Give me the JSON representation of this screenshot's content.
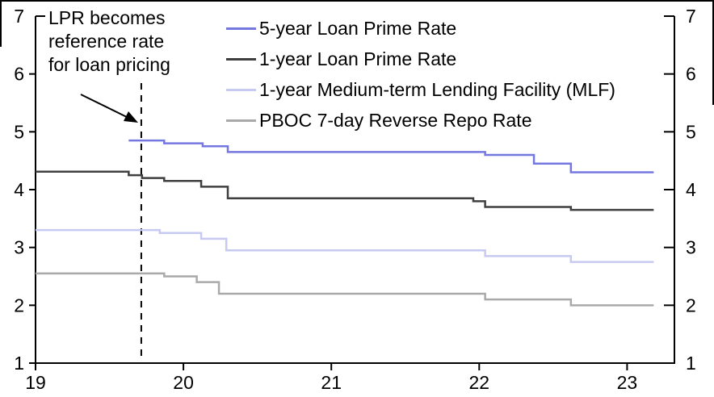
{
  "chart_data": {
    "type": "line",
    "step": true,
    "title": "",
    "xlabel": "",
    "ylabel": "",
    "xlim": [
      19,
      23.32
    ],
    "ylim": [
      1,
      7
    ],
    "x_ticks": [
      19,
      20,
      21,
      22,
      23
    ],
    "x_tick_labels": [
      "19",
      "20",
      "21",
      "22",
      "23"
    ],
    "y_ticks": [
      1,
      2,
      3,
      4,
      5,
      6,
      7
    ],
    "y_tick_labels": [
      "1",
      "2",
      "3",
      "4",
      "5",
      "6",
      "7"
    ],
    "grid": false,
    "dual_y_axis": true,
    "legend_position": "top-center",
    "series": [
      {
        "name": "5-year Loan Prime Rate",
        "color": "#7577e0",
        "points": [
          [
            19.63,
            4.85
          ],
          [
            19.87,
            4.8
          ],
          [
            20.13,
            4.75
          ],
          [
            20.3,
            4.65
          ],
          [
            22.04,
            4.6
          ],
          [
            22.37,
            4.45
          ],
          [
            22.62,
            4.3
          ],
          [
            23.18,
            4.3
          ]
        ]
      },
      {
        "name": "1-year Loan Prime Rate",
        "color": "#3f3f3f",
        "points": [
          [
            19.0,
            4.31
          ],
          [
            19.63,
            4.25
          ],
          [
            19.72,
            4.2
          ],
          [
            19.87,
            4.15
          ],
          [
            20.12,
            4.05
          ],
          [
            20.3,
            3.85
          ],
          [
            21.96,
            3.8
          ],
          [
            22.04,
            3.7
          ],
          [
            22.62,
            3.65
          ],
          [
            23.18,
            3.65
          ]
        ]
      },
      {
        "name": "1-year Medium-term Lending Facility (MLF)",
        "color": "#c6c9f1",
        "points": [
          [
            19.0,
            3.3
          ],
          [
            19.84,
            3.25
          ],
          [
            20.12,
            3.15
          ],
          [
            20.29,
            2.95
          ],
          [
            22.04,
            2.85
          ],
          [
            22.62,
            2.75
          ],
          [
            23.18,
            2.75
          ]
        ]
      },
      {
        "name": "PBOC 7-day Reverse Repo Rate",
        "color": "#a9a9a9",
        "points": [
          [
            19.0,
            2.55
          ],
          [
            19.87,
            2.5
          ],
          [
            20.09,
            2.4
          ],
          [
            20.24,
            2.2
          ],
          [
            22.04,
            2.1
          ],
          [
            22.62,
            2.0
          ],
          [
            23.18,
            2.0
          ]
        ]
      }
    ],
    "annotation": {
      "text_lines": [
        "LPR becomes",
        "reference rate",
        "for loan pricing"
      ],
      "dashed_line_x": 19.715,
      "arrow": true
    }
  },
  "colors": {
    "axis": "#000000",
    "text": "#000000",
    "frame_border": "#000000",
    "background": "#ffffff"
  }
}
